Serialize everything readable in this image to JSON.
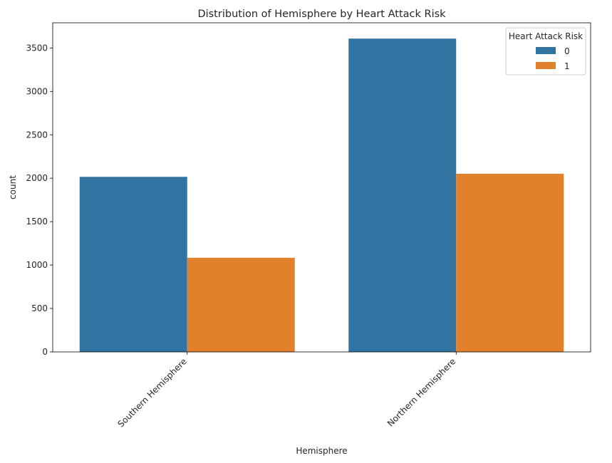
{
  "chart_data": {
    "type": "bar",
    "title": "Distribution of Hemisphere by Heart Attack Risk",
    "xlabel": "Hemisphere",
    "ylabel": "count",
    "categories": [
      "Southern Hemisphere",
      "Northern Hemisphere"
    ],
    "series": [
      {
        "name": "0",
        "values": [
          2016,
          3608
        ],
        "color": "#3274a1"
      },
      {
        "name": "1",
        "values": [
          1084,
          2052
        ],
        "color": "#e1812c"
      }
    ],
    "ylim": [
      0,
      3790
    ],
    "yticks": [
      0,
      500,
      1000,
      1500,
      2000,
      2500,
      3000,
      3500
    ],
    "legend": {
      "title": "Heart Attack Risk",
      "position": "top-right"
    },
    "grid": false
  }
}
